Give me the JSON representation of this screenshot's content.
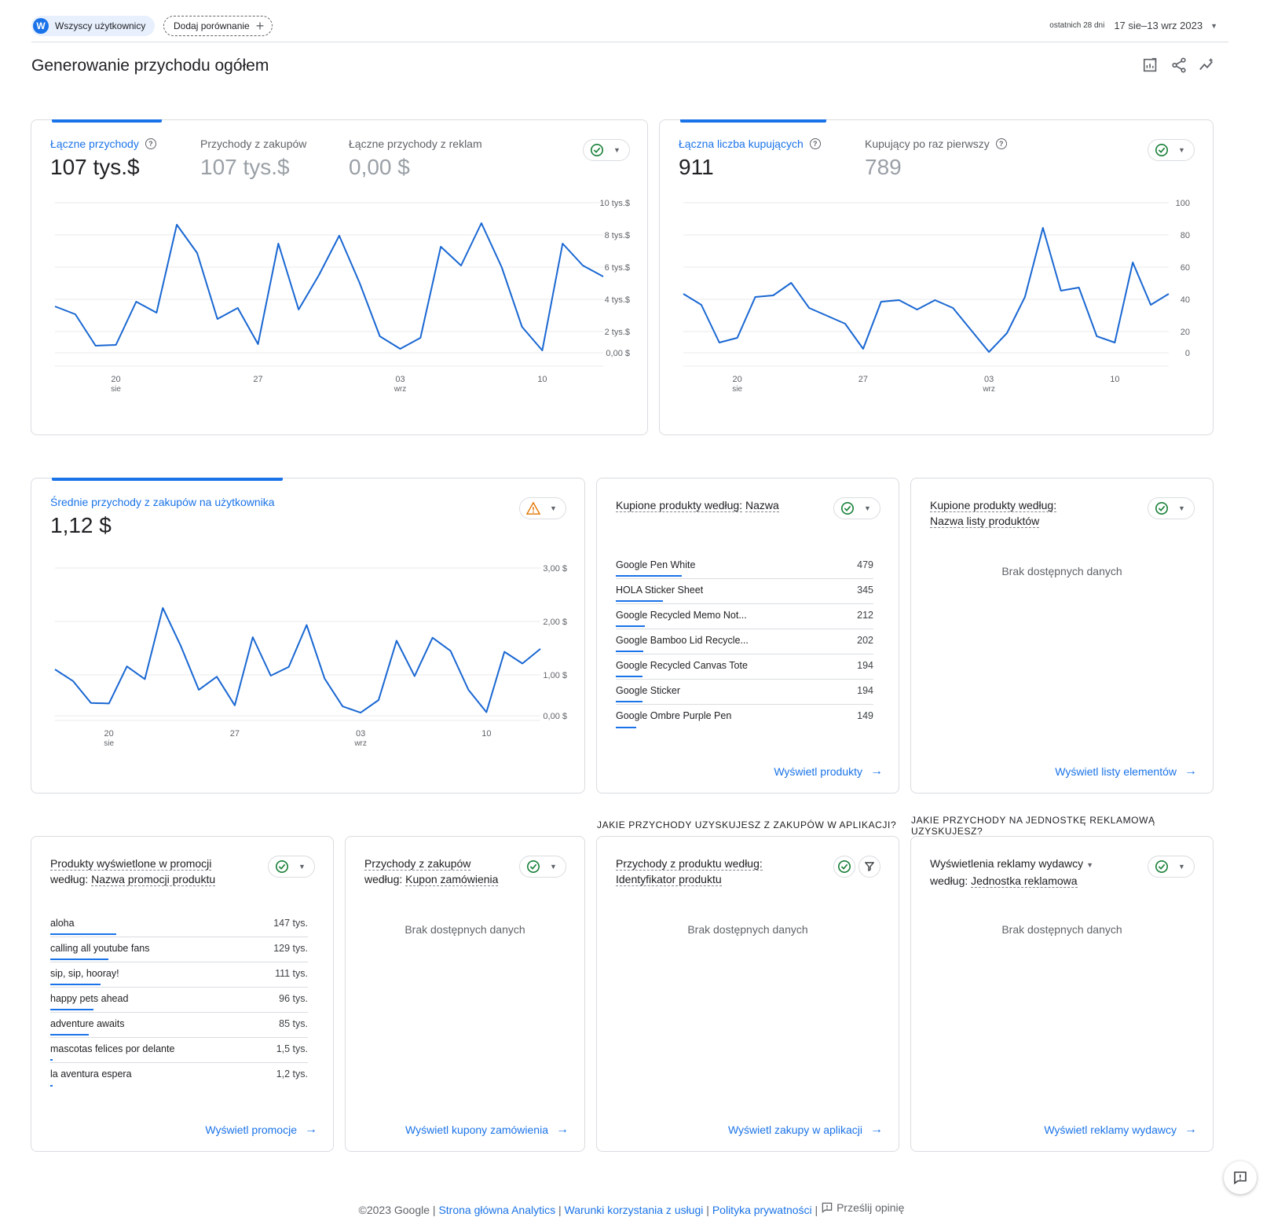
{
  "topbar": {
    "user_chip_letter": "W",
    "user_chip_label": "Wszyscy użytkownicy",
    "add_comparison_label": "Dodaj porównanie",
    "date_range_small": "ostatnich 28 dni",
    "date_range": "17 sie–13 wrz 2023"
  },
  "page_title": "Generowanie przychodu ogółem",
  "icons": [
    "edit-report-icon",
    "share-icon",
    "insights-icon"
  ],
  "cards": {
    "revenue": {
      "metrics": [
        {
          "label": "Łączne przychody",
          "value": "107 tys.$"
        },
        {
          "label": "Przychody z zakupów",
          "value": "107 tys.$"
        },
        {
          "label": "Łączne przychody z reklam",
          "value": "0,00 $"
        }
      ]
    },
    "buyers": {
      "metrics": [
        {
          "label": "Łączna liczba kupujących",
          "value": "911"
        },
        {
          "label": "Kupujący po raz pierwszy",
          "value": "789"
        }
      ]
    },
    "arpu": {
      "metric_label": "Średnie przychody z zakupów na użytkownika",
      "metric_value": "1,12 $"
    },
    "products": {
      "title_a": "Kupione produkty według:",
      "title_b": "Nazwa",
      "rows": [
        {
          "name": "Google Pen White",
          "value": "479",
          "share": 1.0
        },
        {
          "name": "HOLA Sticker Sheet",
          "value": "345",
          "share": 0.72
        },
        {
          "name": "Google Recycled Memo Not...",
          "value": "212",
          "share": 0.44
        },
        {
          "name": "Google Bamboo Lid Recycle...",
          "value": "202",
          "share": 0.42
        },
        {
          "name": "Google Recycled Canvas Tote",
          "value": "194",
          "share": 0.41
        },
        {
          "name": "Google Sticker",
          "value": "194",
          "share": 0.41
        },
        {
          "name": "Google Ombre Purple Pen",
          "value": "149",
          "share": 0.31
        }
      ],
      "link": "Wyświetl produkty"
    },
    "product_lists": {
      "title_a": "Kupione produkty według:",
      "title_b": "Nazwa listy produktów",
      "empty": "Brak dostępnych danych",
      "link": "Wyświetl listy elementów"
    },
    "promotions": {
      "title_a": "Produkty wyświetlone w promocji",
      "title_b1": "według:",
      "title_b2": "Nazwa promocji produktu",
      "rows": [
        {
          "name": "aloha",
          "value": "147 tys.",
          "share": 1.0
        },
        {
          "name": "calling all youtube fans",
          "value": "129 tys.",
          "share": 0.88
        },
        {
          "name": "sip, sip, hooray!",
          "value": "111 tys.",
          "share": 0.76
        },
        {
          "name": "happy pets ahead",
          "value": "96 tys.",
          "share": 0.65
        },
        {
          "name": "adventure awaits",
          "value": "85 tys.",
          "share": 0.58
        },
        {
          "name": "mascotas felices por delante",
          "value": "1,5 tys.",
          "share": 0.01
        },
        {
          "name": "la aventura espera",
          "value": "1,2 tys.",
          "share": 0.008
        }
      ],
      "link": "Wyświetl promocje"
    },
    "coupons": {
      "title_a": "Przychody z zakupów",
      "title_b1": "według:",
      "title_b2": "Kupon zamówienia",
      "empty": "Brak dostępnych danych",
      "link": "Wyświetl kupony zamówienia"
    },
    "app_purchases": {
      "question": "JAKIE PRZYCHODY UZYSKUJESZ Z ZAKUPÓW W APLIKACJI?",
      "title_a": "Przychody z produktu według:",
      "title_b": "Identyfikator produktu",
      "empty": "Brak dostępnych danych",
      "link": "Wyświetl zakupy w aplikacji"
    },
    "ad_units": {
      "question": "JAKIE PRZYCHODY NA JEDNOSTKĘ REKLAMOWĄ UZYSKUJESZ?",
      "title_a": "Wyświetlenia reklamy wydawcy",
      "title_b1": "według:",
      "title_b2": "Jednostka reklamowa",
      "empty": "Brak dostępnych danych",
      "link": "Wyświetl reklamy wydawcy"
    }
  },
  "footer": {
    "copyright": "©2023 Google",
    "link1": "Strona główna Analytics",
    "link2": "Warunki korzystania z usługi",
    "link3": "Polityka prywatności",
    "feedback": "Prześlij opinię"
  },
  "chart_data": [
    {
      "type": "line",
      "ylim": [
        0,
        10000
      ],
      "y_ticks": [
        "10 tys.$",
        "8 tys.$",
        "6 tys.$",
        "4 tys.$",
        "2 tys.$",
        "0,00 $"
      ],
      "x_ticks": [
        {
          "label": "20",
          "sub": "sie"
        },
        {
          "label": "27",
          "sub": ""
        },
        {
          "label": "03",
          "sub": "wrz"
        },
        {
          "label": "10",
          "sub": ""
        }
      ],
      "x": [
        "2023-08-17",
        "2023-08-18",
        "2023-08-19",
        "2023-08-20",
        "2023-08-21",
        "2023-08-22",
        "2023-08-23",
        "2023-08-24",
        "2023-08-25",
        "2023-08-26",
        "2023-08-27",
        "2023-08-28",
        "2023-08-29",
        "2023-08-30",
        "2023-08-31",
        "2023-09-01",
        "2023-09-02",
        "2023-09-03",
        "2023-09-04",
        "2023-09-05",
        "2023-09-06",
        "2023-09-07",
        "2023-09-08",
        "2023-09-09",
        "2023-09-10",
        "2023-09-11",
        "2023-09-12",
        "2023-09-13"
      ],
      "values": [
        3400,
        2900,
        900,
        950,
        3700,
        3000,
        8600,
        6800,
        2600,
        3300,
        1000,
        7400,
        3200,
        5400,
        7900,
        4900,
        1500,
        700,
        1400,
        7200,
        6000,
        8700,
        5900,
        2100,
        600,
        7400,
        6000,
        5300
      ]
    },
    {
      "type": "line",
      "ylim": [
        0,
        100
      ],
      "y_ticks": [
        "100",
        "80",
        "60",
        "40",
        "20",
        "0"
      ],
      "x_ticks": [
        {
          "label": "20",
          "sub": "sie"
        },
        {
          "label": "27",
          "sub": ""
        },
        {
          "label": "03",
          "sub": "wrz"
        },
        {
          "label": "10",
          "sub": ""
        }
      ],
      "x": [
        "2023-08-17",
        "2023-08-18",
        "2023-08-19",
        "2023-08-20",
        "2023-08-21",
        "2023-08-22",
        "2023-08-23",
        "2023-08-24",
        "2023-08-25",
        "2023-08-26",
        "2023-08-27",
        "2023-08-28",
        "2023-08-29",
        "2023-08-30",
        "2023-08-31",
        "2023-09-01",
        "2023-09-02",
        "2023-09-03",
        "2023-09-04",
        "2023-09-05",
        "2023-09-06",
        "2023-09-07",
        "2023-09-08",
        "2023-09-09",
        "2023-09-10",
        "2023-09-11",
        "2023-09-12",
        "2023-09-13"
      ],
      "values": [
        42,
        35,
        11,
        14,
        40,
        41,
        49,
        33,
        28,
        23,
        7,
        37,
        38,
        32,
        38,
        33,
        19,
        5,
        17,
        40,
        84,
        44,
        46,
        15,
        11,
        62,
        35,
        42
      ]
    },
    {
      "type": "line",
      "ylim": [
        0,
        3
      ],
      "y_ticks": [
        "3,00 $",
        "2,00 $",
        "1,00 $",
        "0,00 $"
      ],
      "x_ticks": [
        {
          "label": "20",
          "sub": "sie"
        },
        {
          "label": "27",
          "sub": ""
        },
        {
          "label": "03",
          "sub": "wrz"
        },
        {
          "label": "10",
          "sub": ""
        }
      ],
      "x": [
        "2023-08-17",
        "2023-08-18",
        "2023-08-19",
        "2023-08-20",
        "2023-08-21",
        "2023-08-22",
        "2023-08-23",
        "2023-08-24",
        "2023-08-25",
        "2023-08-26",
        "2023-08-27",
        "2023-08-28",
        "2023-08-29",
        "2023-08-30",
        "2023-08-31",
        "2023-09-01",
        "2023-09-02",
        "2023-09-03",
        "2023-09-04",
        "2023-09-05",
        "2023-09-06",
        "2023-09-07",
        "2023-09-08",
        "2023-09-09",
        "2023-09-10",
        "2023-09-11",
        "2023-09-12",
        "2023-09-13"
      ],
      "values": [
        0.92,
        0.68,
        0.23,
        0.22,
        0.98,
        0.72,
        2.18,
        1.4,
        0.5,
        0.77,
        0.18,
        1.58,
        0.79,
        0.97,
        1.83,
        0.73,
        0.16,
        0.03,
        0.29,
        1.51,
        0.78,
        1.57,
        1.3,
        0.5,
        0.04,
        1.28,
        1.04,
        1.34
      ]
    }
  ]
}
